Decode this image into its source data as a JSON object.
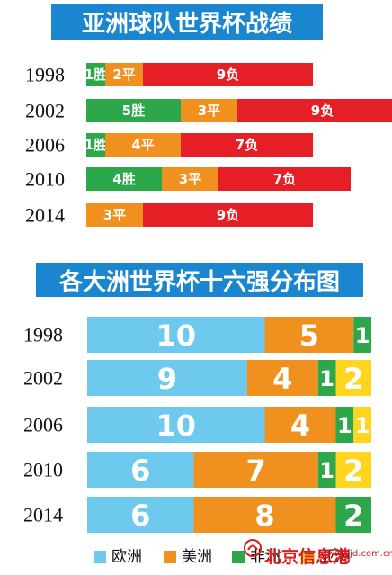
{
  "title_top": "亚洲球队世界杯战绩",
  "title_bottom": "各大洲世界杯十六强分布图",
  "colors": {
    "win": "#2ca84a",
    "draw": "#f0901e",
    "loss": "#e61e25",
    "europe": "#6ec9ef",
    "americas": "#f0901e",
    "africa": "#2ca84a",
    "asia": "#ffd51e",
    "banner": "#1a86d0"
  },
  "chart_data": [
    {
      "type": "bar",
      "stacked": true,
      "orientation": "horizontal",
      "title": "亚洲球队世界杯战绩",
      "categories": [
        "1998",
        "2002",
        "2006",
        "2010",
        "2014"
      ],
      "series": [
        {
          "key": "win",
          "values": [
            1,
            5,
            1,
            4,
            0
          ],
          "labels": [
            "1胜",
            "5胜",
            "1胜",
            "4胜",
            ""
          ]
        },
        {
          "key": "draw",
          "values": [
            2,
            3,
            4,
            3,
            3
          ],
          "labels": [
            "2平",
            "3平",
            "4平",
            "3平",
            "3平"
          ]
        },
        {
          "key": "loss",
          "values": [
            9,
            9,
            7,
            7,
            9
          ],
          "labels": [
            "9负",
            "9负",
            "7负",
            "7负",
            "9负"
          ]
        }
      ]
    },
    {
      "type": "bar",
      "stacked": true,
      "orientation": "horizontal",
      "title": "各大洲世界杯十六强分布图",
      "categories": [
        "1998",
        "2002",
        "2006",
        "2010",
        "2014"
      ],
      "series": [
        {
          "name": "欧洲",
          "key": "europe",
          "values": [
            10,
            9,
            10,
            6,
            6
          ]
        },
        {
          "name": "美洲",
          "key": "americas",
          "values": [
            5,
            4,
            4,
            7,
            8
          ]
        },
        {
          "name": "非洲",
          "key": "africa",
          "values": [
            1,
            1,
            1,
            1,
            2
          ]
        },
        {
          "name": "亚洲",
          "key": "asia",
          "values": [
            0,
            2,
            1,
            2,
            0
          ]
        }
      ],
      "legend_position": "bottom"
    }
  ],
  "watermark": {
    "name": "北京信息港",
    "url": "www.bjd.com.cn"
  }
}
